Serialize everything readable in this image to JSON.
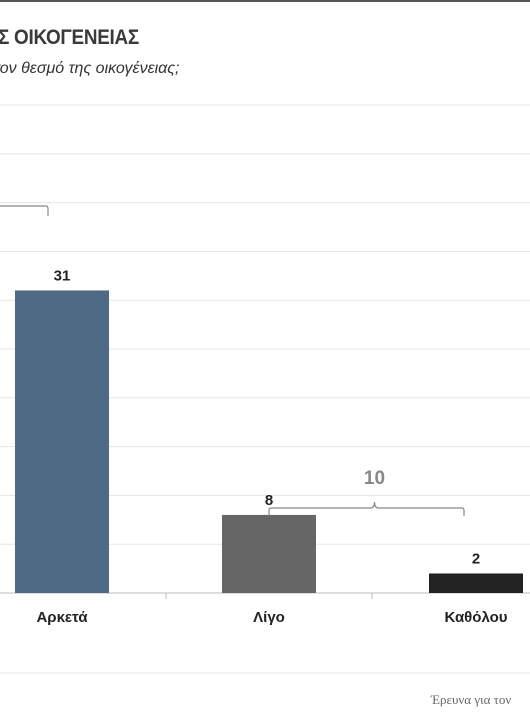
{
  "chart": {
    "title": "Σ ΟΙΚΟΓΕΝΕΙΑΣ",
    "subtitle": "τον θεσμό της οικογένειας;",
    "source": "Έρευνα για τον"
  },
  "chart_data": {
    "type": "bar",
    "categories": [
      "Αρκετά",
      "Λίγο",
      "Καθόλου"
    ],
    "values": [
      31,
      8,
      2
    ],
    "colors": [
      "#4e6a85",
      "#666666",
      "#222222"
    ],
    "ylim": [
      0,
      50
    ],
    "grid": true,
    "annotations": [
      {
        "text": "10",
        "spans": [
          "Λίγο",
          "Καθόλου"
        ],
        "color": "#888888"
      }
    ]
  }
}
